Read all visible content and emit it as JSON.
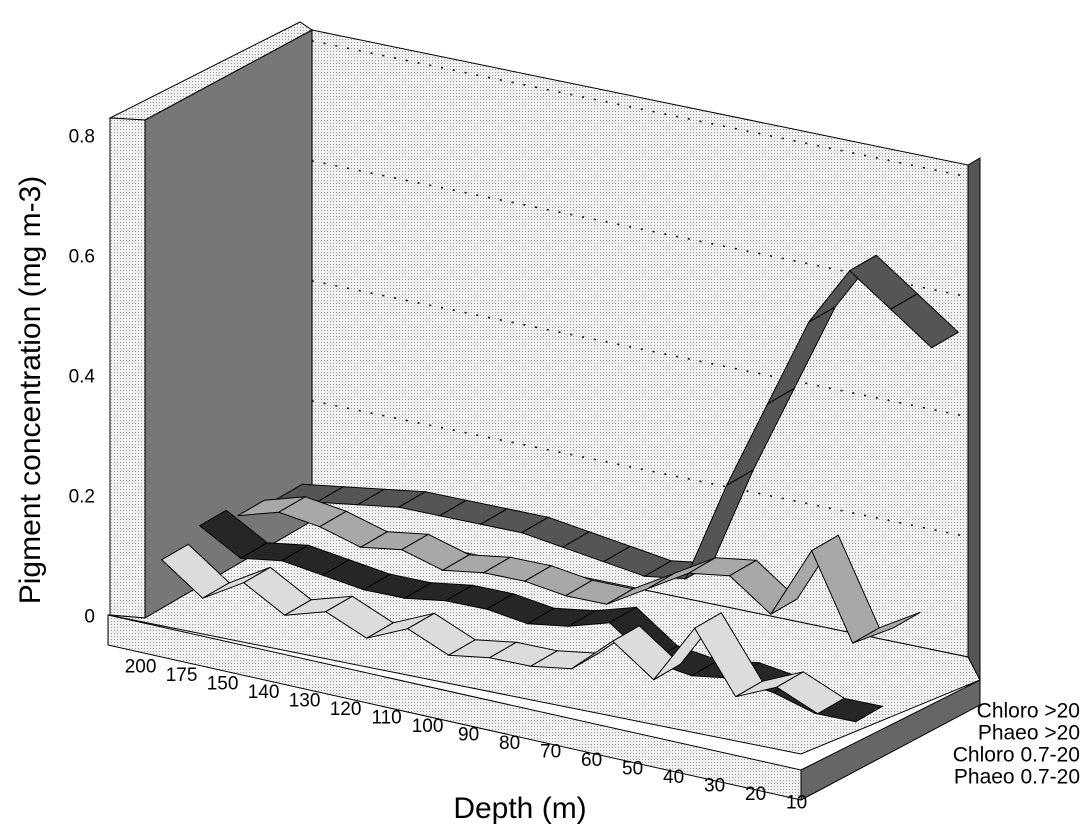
{
  "chart_data": {
    "type": "ribbon3d",
    "y_label": "Pigment concentration (mg m-3)",
    "x_label": "Depth (m)",
    "categories": [
      "200",
      "175",
      "150",
      "140",
      "130",
      "120",
      "110",
      "100",
      "90",
      "80",
      "70",
      "60",
      "50",
      "40",
      "30",
      "20",
      "10"
    ],
    "ylim": [
      0,
      0.8
    ],
    "yticks": [
      0,
      0.2,
      0.4,
      0.6,
      0.8
    ],
    "grid": true,
    "series": [
      {
        "name": "Phaeo 0.7-20",
        "color": "#dcdcdc",
        "values": [
          0.08,
          0.03,
          0.07,
          0.03,
          0.05,
          0.02,
          0.05,
          0.02,
          0.03,
          0.03,
          0.04,
          0.1,
          0.05,
          0.15,
          0.05,
          0.08,
          0.05
        ]
      },
      {
        "name": "Chloro 0.7-20",
        "color": "#262626",
        "values": [
          0.1,
          0.06,
          0.07,
          0.06,
          0.05,
          0.05,
          0.06,
          0.06,
          0.05,
          0.06,
          0.08,
          0.03,
          0.02,
          0.03,
          0.02,
          0,
          0
        ]
      },
      {
        "name": "Phaeo >20",
        "color": "#a8a8a8",
        "values": [
          0.08,
          0.1,
          0.09,
          0.07,
          0.08,
          0.06,
          0.07,
          0.07,
          0.06,
          0.06,
          0.1,
          0.14,
          0.15,
          0.1,
          0.22,
          0.08,
          0.12
        ]
      },
      {
        "name": "Chloro >20",
        "color": "#555555",
        "values": [
          0.07,
          0.08,
          0.09,
          0.1,
          0.1,
          0.1,
          0.1,
          0.09,
          0.08,
          0.07,
          0.08,
          0.25,
          0.4,
          0.55,
          0.65,
          0.6,
          0.55
        ]
      }
    ]
  }
}
